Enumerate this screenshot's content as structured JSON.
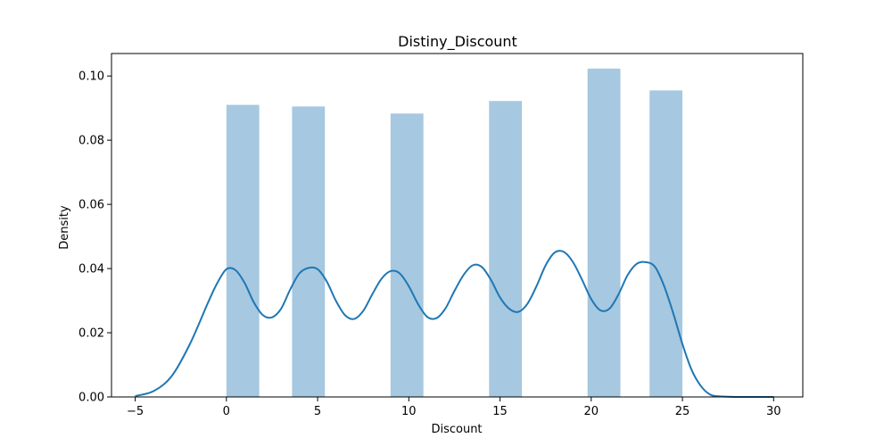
{
  "chart_data": {
    "type": "bar",
    "title": "Distiny_Discount",
    "xlabel": "Discount",
    "ylabel": "Density",
    "xlim": [
      -6.3,
      31.6
    ],
    "ylim": [
      0,
      0.107
    ],
    "xticks": [
      -5,
      0,
      5,
      10,
      15,
      20,
      25,
      30
    ],
    "yticks": [
      0.0,
      0.02,
      0.04,
      0.06,
      0.08,
      0.1
    ],
    "ytick_labels": [
      "0.00",
      "0.02",
      "0.04",
      "0.06",
      "0.08",
      "0.10"
    ],
    "grid": false,
    "histogram": {
      "color": "#a6c8e0",
      "bins": [
        {
          "x0": 0.0,
          "x1": 1.8,
          "density": 0.091
        },
        {
          "x0": 3.6,
          "x1": 5.4,
          "density": 0.0905
        },
        {
          "x0": 9.0,
          "x1": 10.8,
          "density": 0.0883
        },
        {
          "x0": 14.4,
          "x1": 16.2,
          "density": 0.0922
        },
        {
          "x0": 19.8,
          "x1": 21.6,
          "density": 0.1023
        },
        {
          "x0": 23.2,
          "x1": 25.0,
          "density": 0.0955
        }
      ]
    },
    "kde": {
      "color": "#1f77b4",
      "x": [
        -5,
        -4,
        -3,
        -2,
        -1,
        -0.5,
        0,
        0.5,
        1,
        1.5,
        2,
        2.5,
        3,
        3.5,
        4,
        4.5,
        5,
        5.5,
        6,
        6.5,
        7,
        7.5,
        8,
        8.5,
        9,
        9.5,
        10,
        10.5,
        11,
        11.5,
        12,
        12.5,
        13,
        13.5,
        14,
        14.5,
        15,
        15.5,
        16,
        16.5,
        17,
        17.5,
        18,
        18.5,
        19,
        19.5,
        20,
        20.5,
        21,
        21.5,
        22,
        22.5,
        23,
        23.5,
        24,
        24.5,
        25,
        25.5,
        26,
        26.5,
        27,
        28,
        29,
        30
      ],
      "y": [
        0.0003,
        0.0018,
        0.0065,
        0.0165,
        0.0295,
        0.0355,
        0.0398,
        0.0395,
        0.0355,
        0.0295,
        0.0255,
        0.0248,
        0.0275,
        0.0335,
        0.0385,
        0.0402,
        0.0398,
        0.036,
        0.03,
        0.0255,
        0.0243,
        0.0268,
        0.032,
        0.0368,
        0.0392,
        0.0385,
        0.0345,
        0.029,
        0.025,
        0.0245,
        0.0275,
        0.033,
        0.038,
        0.041,
        0.0405,
        0.0365,
        0.031,
        0.0275,
        0.0265,
        0.029,
        0.0345,
        0.041,
        0.045,
        0.0452,
        0.042,
        0.0365,
        0.0305,
        0.027,
        0.0275,
        0.032,
        0.038,
        0.0415,
        0.042,
        0.0405,
        0.0345,
        0.026,
        0.0165,
        0.0085,
        0.0035,
        0.0008,
        0.0002,
        0.0,
        0.0,
        0.0
      ]
    }
  }
}
